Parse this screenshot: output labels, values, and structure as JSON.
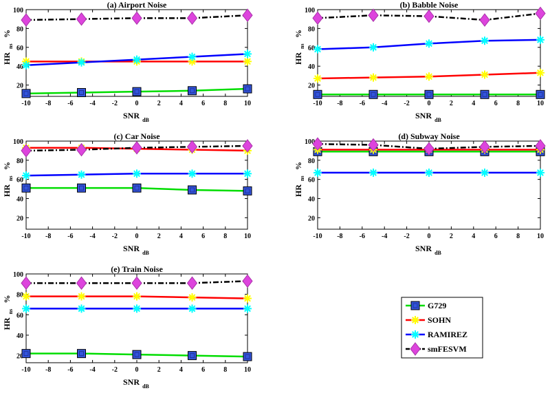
{
  "colors": {
    "G729": "#00dd00",
    "SOHN": "#ff0000",
    "RAMIREZ": "#0000ff",
    "smFESVM": "#000000",
    "G729_marker": "#3355dd",
    "SOHN_marker": "#ffff00",
    "RAMIREZ_marker": "#00ffff",
    "smFESVM_marker": "#dd44dd"
  },
  "legend": {
    "entries": [
      "G729",
      "SOHN",
      "RAMIREZ",
      "smFESVM"
    ]
  },
  "axis_text": {
    "xlabel_main": "SNR",
    "xlabel_sub": "dB",
    "ylabel_main": "HR",
    "ylabel_sub": "ns",
    "ylabel_unit": "%"
  },
  "chart_data": [
    {
      "type": "line",
      "title": "(a) Airport Noise",
      "x": [
        -10,
        -5,
        0,
        5,
        10
      ],
      "xticks": [
        -10,
        -8,
        -6,
        -4,
        -2,
        0,
        2,
        4,
        6,
        8,
        10
      ],
      "yticks": [
        20,
        40,
        60,
        80,
        100
      ],
      "xlim": [
        -10,
        10
      ],
      "ylim": [
        8,
        100
      ],
      "series": [
        {
          "name": "G729",
          "values": [
            11,
            12,
            13,
            14,
            16
          ]
        },
        {
          "name": "SOHN",
          "values": [
            45,
            45,
            45,
            45,
            45
          ]
        },
        {
          "name": "RAMIREZ",
          "values": [
            41,
            44,
            47,
            50,
            53
          ]
        },
        {
          "name": "smFESVM",
          "values": [
            89,
            90,
            91,
            91,
            94
          ]
        }
      ]
    },
    {
      "type": "line",
      "title": "(b) Babble Noise",
      "x": [
        -10,
        -5,
        0,
        5,
        10
      ],
      "xticks": [
        -10,
        -8,
        -6,
        -4,
        -2,
        0,
        2,
        4,
        6,
        8,
        10
      ],
      "yticks": [
        20,
        40,
        60,
        80,
        100
      ],
      "xlim": [
        -10,
        10
      ],
      "ylim": [
        8,
        100
      ],
      "series": [
        {
          "name": "G729",
          "values": [
            10,
            10,
            10,
            10,
            10
          ]
        },
        {
          "name": "SOHN",
          "values": [
            27,
            28,
            29,
            31,
            33
          ]
        },
        {
          "name": "RAMIREZ",
          "values": [
            58,
            60,
            64,
            67,
            68
          ]
        },
        {
          "name": "smFESVM",
          "values": [
            91,
            94,
            93,
            89,
            96
          ]
        }
      ]
    },
    {
      "type": "line",
      "title": "(c) Car Noise",
      "x": [
        -10,
        -5,
        0,
        5,
        10
      ],
      "xticks": [
        -10,
        -8,
        -6,
        -4,
        -2,
        0,
        2,
        4,
        6,
        8,
        10
      ],
      "yticks": [
        20,
        40,
        60,
        80,
        100
      ],
      "xlim": [
        -10,
        10
      ],
      "ylim": [
        8,
        100
      ],
      "series": [
        {
          "name": "G729",
          "values": [
            51,
            51,
            51,
            49,
            48
          ]
        },
        {
          "name": "SOHN",
          "values": [
            93,
            93,
            92,
            91,
            90
          ]
        },
        {
          "name": "RAMIREZ",
          "values": [
            64,
            65,
            66,
            66,
            66
          ]
        },
        {
          "name": "smFESVM",
          "values": [
            90,
            91,
            93,
            94,
            95
          ]
        }
      ]
    },
    {
      "type": "line",
      "title": "(d) Subway Noise",
      "x": [
        -10,
        -5,
        0,
        5,
        10
      ],
      "xticks": [
        -10,
        -8,
        -6,
        -4,
        -2,
        0,
        2,
        4,
        6,
        8,
        10
      ],
      "yticks": [
        20,
        40,
        60,
        80,
        100
      ],
      "xlim": [
        -10,
        10
      ],
      "ylim": [
        8,
        100
      ],
      "series": [
        {
          "name": "G729",
          "values": [
            89,
            89,
            89,
            89,
            89
          ]
        },
        {
          "name": "SOHN",
          "values": [
            91,
            91,
            91,
            91,
            91
          ]
        },
        {
          "name": "RAMIREZ",
          "values": [
            67,
            67,
            67,
            67,
            67
          ]
        },
        {
          "name": "smFESVM",
          "values": [
            97,
            96,
            92,
            94,
            95
          ]
        }
      ]
    },
    {
      "type": "line",
      "title": "(e) Train Noise",
      "x": [
        -10,
        -5,
        0,
        5,
        10
      ],
      "xticks": [
        -10,
        -8,
        -6,
        -4,
        -2,
        0,
        2,
        4,
        6,
        8,
        10
      ],
      "yticks": [
        20,
        40,
        60,
        80,
        100
      ],
      "xlim": [
        -10,
        10
      ],
      "ylim": [
        13,
        100
      ],
      "series": [
        {
          "name": "G729",
          "values": [
            22,
            22,
            21,
            20,
            19
          ]
        },
        {
          "name": "SOHN",
          "values": [
            78,
            78,
            78,
            77,
            76
          ]
        },
        {
          "name": "RAMIREZ",
          "values": [
            66,
            66,
            66,
            66,
            66
          ]
        },
        {
          "name": "smFESVM",
          "values": [
            91,
            91,
            91,
            91,
            93
          ]
        }
      ]
    }
  ]
}
